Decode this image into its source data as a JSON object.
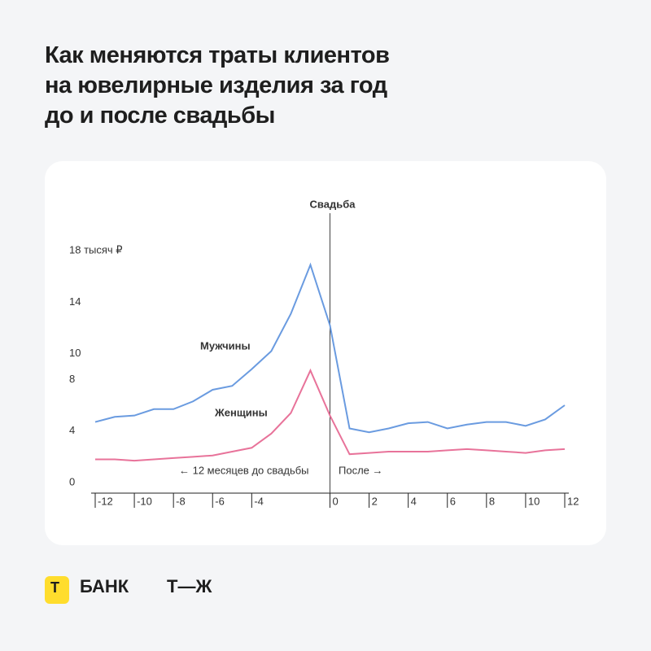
{
  "chart_data": {
    "type": "line",
    "title": [
      "Как меняются траты клиентов",
      "на ювелирные изделия за год",
      "до и после свадьбы"
    ],
    "x": [
      -12,
      -11,
      -10,
      -9,
      -8,
      -7,
      -6,
      -5,
      -4,
      -3,
      -2,
      -1,
      0,
      1,
      2,
      3,
      4,
      5,
      6,
      7,
      8,
      9,
      10,
      11,
      12
    ],
    "series": [
      {
        "name": "Мужчины",
        "color": "#6a9be0",
        "values": [
          4.7,
          5.1,
          5.2,
          5.7,
          5.7,
          6.3,
          7.2,
          7.5,
          8.8,
          10.2,
          13.1,
          16.9,
          12.2,
          4.2,
          3.9,
          4.2,
          4.6,
          4.7,
          4.2,
          4.5,
          4.7,
          4.7,
          4.4,
          4.9,
          6.0
        ]
      },
      {
        "name": "Женщины",
        "color": "#e8739a",
        "values": [
          1.8,
          1.8,
          1.7,
          1.8,
          1.9,
          2.0,
          2.1,
          2.4,
          2.7,
          3.8,
          5.4,
          8.7,
          5.2,
          2.2,
          2.3,
          2.4,
          2.4,
          2.4,
          2.5,
          2.6,
          2.5,
          2.4,
          2.3,
          2.5,
          2.6
        ]
      }
    ],
    "xlim": [
      -12,
      12
    ],
    "xticks": [
      -12,
      -10,
      -8,
      -6,
      -4,
      0,
      2,
      4,
      6,
      8,
      10,
      12
    ],
    "ylim": [
      0,
      18
    ],
    "yticks": [
      0,
      4,
      8,
      10,
      14,
      {
        "value": 18,
        "label": "18 тысяч ₽"
      }
    ],
    "annotations": {
      "wedding": "Свадьба",
      "before": "← 12 месяцев до свадьбы",
      "after": "После →"
    }
  },
  "footer": {
    "bank_letter": "Т",
    "bank": "БАНК",
    "tj": "Т—Ж"
  }
}
